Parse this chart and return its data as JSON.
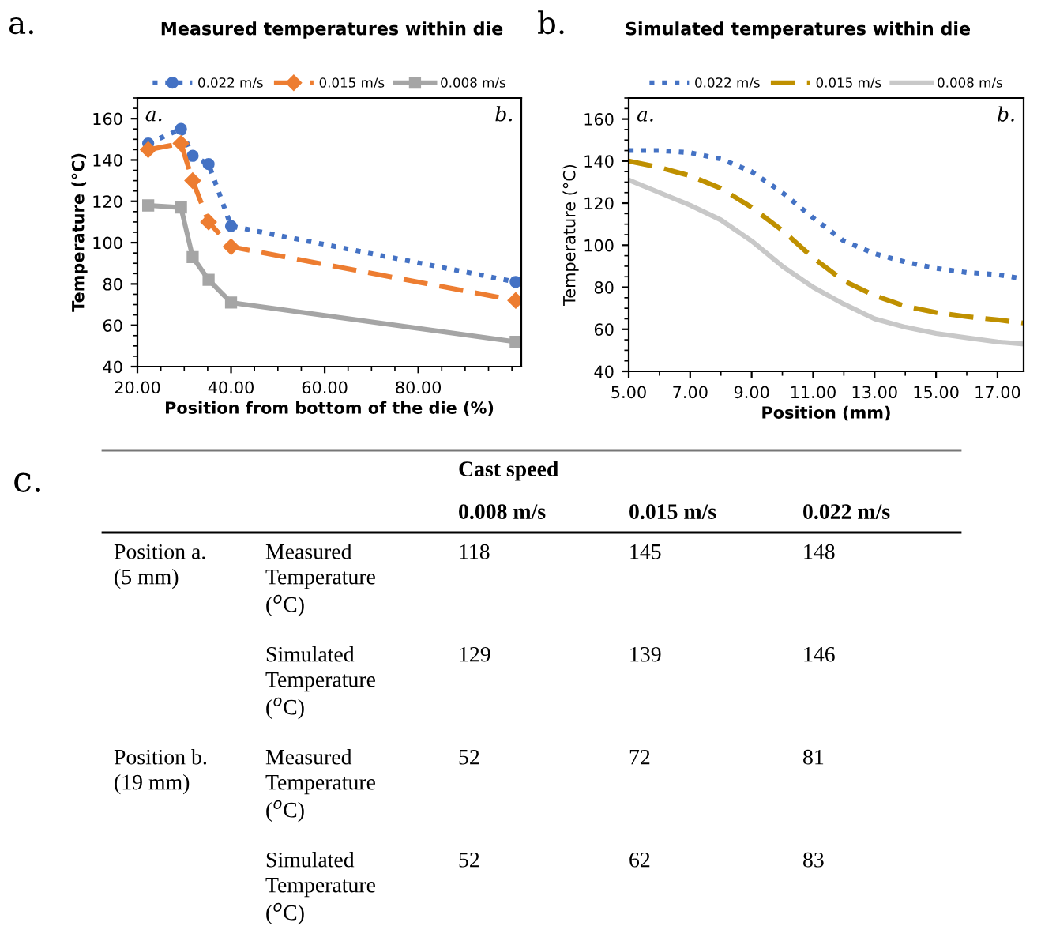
{
  "chart_data": [
    {
      "type": "line",
      "title": "Measured temperatures within die",
      "xlabel": "Position from bottom of the die (%)",
      "ylabel": "Temperature (°C)",
      "annotations": [
        "a.",
        "a.",
        "b."
      ],
      "xlim": [
        20,
        102
      ],
      "xticks": [
        {
          "value": 20,
          "label": "20.00"
        },
        {
          "value": 40,
          "label": "40.00"
        },
        {
          "value": 60,
          "label": "60.00"
        },
        {
          "value": 80,
          "label": "80.00"
        }
      ],
      "ylim": [
        40,
        170
      ],
      "yticks": [
        40,
        60,
        80,
        100,
        120,
        140,
        160
      ],
      "grid": false,
      "legend": "top",
      "series": [
        {
          "name": "0.022 m/s",
          "color": "#4472c4",
          "marker": "circle",
          "line_style": "dotted",
          "x": [
            22.3,
            29.3,
            31.8,
            35.2,
            40,
            100.8
          ],
          "values": [
            148,
            155,
            142,
            138,
            108,
            81
          ]
        },
        {
          "name": "0.015 m/s",
          "color": "#ed7d31",
          "marker": "diamond",
          "line_style": "dashed",
          "x": [
            22.3,
            29.3,
            31.8,
            35.2,
            40,
            100.8
          ],
          "values": [
            145,
            148,
            130,
            110,
            98,
            72
          ]
        },
        {
          "name": "0.008 m/s",
          "color": "#a5a5a5",
          "marker": "square",
          "line_style": "solid",
          "x": [
            22.3,
            29.3,
            31.8,
            35.2,
            40,
            100.8
          ],
          "values": [
            118,
            117,
            93,
            82,
            71,
            52
          ]
        }
      ]
    },
    {
      "type": "line",
      "title": "Simulated temperatures within die",
      "xlabel": "Position (mm)",
      "ylabel": "Temperature (°C)",
      "annotations": [
        "b.",
        "a.",
        "b."
      ],
      "xlim": [
        5,
        17.85
      ],
      "xticks": [
        {
          "value": 5,
          "label": "5.00"
        },
        {
          "value": 7,
          "label": "7.00"
        },
        {
          "value": 9,
          "label": "9.00"
        },
        {
          "value": 11,
          "label": "11.00"
        },
        {
          "value": 13,
          "label": "13.00"
        },
        {
          "value": 15,
          "label": "15.00"
        },
        {
          "value": 17,
          "label": "17.00"
        }
      ],
      "ylim": [
        40,
        170
      ],
      "yticks": [
        40,
        60,
        80,
        100,
        120,
        140,
        160
      ],
      "grid": false,
      "legend": "top",
      "series": [
        {
          "name": "0.022 m/s",
          "color": "#4472c4",
          "line_style": "dotted",
          "x": [
            5,
            6,
            7,
            8,
            9,
            10,
            11,
            12,
            13,
            14,
            15,
            16,
            17,
            17.85
          ],
          "values": [
            145,
            145,
            144,
            141,
            135,
            125,
            113,
            102,
            96,
            92,
            89,
            87,
            86,
            84
          ]
        },
        {
          "name": "0.015 m/s",
          "color": "#bf9000",
          "line_style": "dashed",
          "x": [
            5,
            6,
            7,
            8,
            9,
            10,
            11,
            12,
            13,
            14,
            15,
            16,
            17,
            17.85
          ],
          "values": [
            140,
            137,
            133,
            127,
            118,
            107,
            94,
            83,
            76,
            71,
            68,
            66,
            64.5,
            63
          ]
        },
        {
          "name": "0.008 m/s",
          "color": "#c8c8c8",
          "line_style": "solid",
          "x": [
            5,
            6,
            7,
            8,
            9,
            10,
            11,
            12,
            13,
            14,
            15,
            16,
            17,
            17.85
          ],
          "values": [
            131,
            125,
            119,
            112,
            102,
            90,
            80,
            72,
            65,
            61,
            58,
            56,
            54,
            53
          ]
        }
      ]
    },
    {
      "type": "other",
      "subtitle": "Cast speed",
      "annotations": [
        "c."
      ],
      "categories": [
        "0.008 m/s",
        "0.015 m/s",
        "0.022 m/s"
      ],
      "y_categories": [
        "Position a.\n(5 mm)",
        null,
        "Position b.\n(19 mm)",
        null
      ],
      "y2_categories": [
        "Measured\nTemperature\n($^{o}$C)",
        "Simulated\nTemperature\n($^{o}$C)",
        "Measured\nTemperature\n($^{o}$C)",
        "Simulated\nTemperature\n($^{o}$C)"
      ],
      "cell_labels": [
        [
          "118",
          "145",
          "148"
        ],
        [
          "129",
          "139",
          "146"
        ],
        [
          "52",
          "72",
          "81"
        ],
        [
          "52",
          "62",
          "83"
        ]
      ]
    }
  ]
}
